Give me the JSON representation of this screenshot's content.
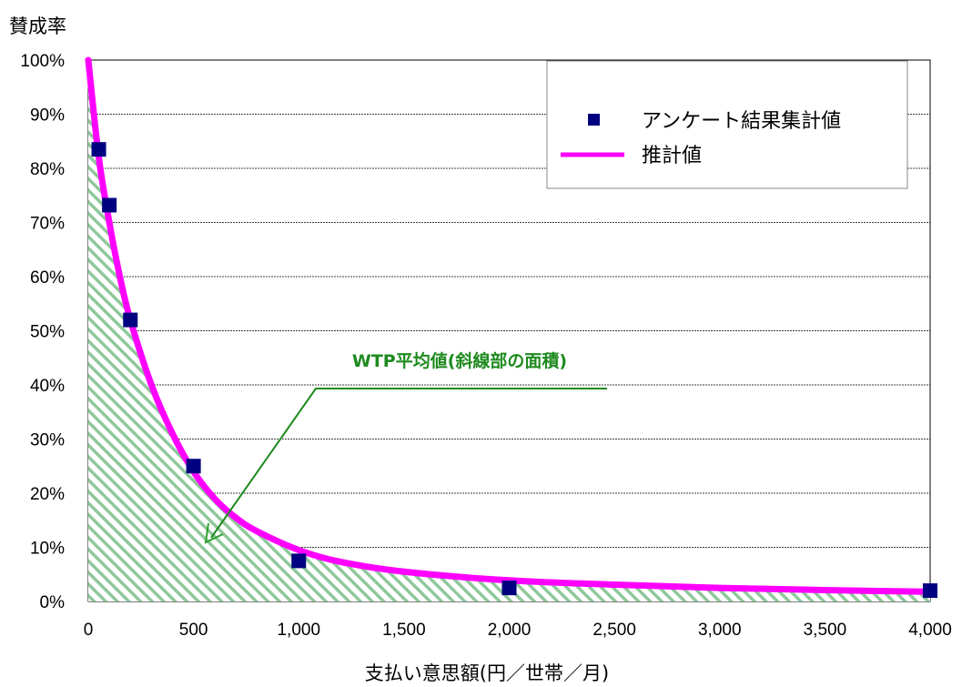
{
  "chart_data": {
    "type": "scatter",
    "ylabel": "賛成率",
    "xlabel": "支払い意思額(円／世帯／月)",
    "xlim": [
      0,
      4000
    ],
    "ylim": [
      0,
      100
    ],
    "x_ticks": [
      "0",
      "500",
      "1,000",
      "1,500",
      "2,000",
      "2,500",
      "3,000",
      "3,500",
      "4,000"
    ],
    "y_ticks": [
      "0%",
      "10%",
      "20%",
      "30%",
      "40%",
      "50%",
      "60%",
      "70%",
      "80%",
      "90%",
      "100%"
    ],
    "grid": "horizontal",
    "legend_position": "top-right",
    "series": [
      {
        "name": "アンケート結果集計値",
        "kind": "markers",
        "color": "#000080",
        "points": [
          {
            "x": 50,
            "y": 83.5
          },
          {
            "x": 100,
            "y": 73.2
          },
          {
            "x": 200,
            "y": 52.0
          },
          {
            "x": 500,
            "y": 25.0
          },
          {
            "x": 1000,
            "y": 7.5
          },
          {
            "x": 2000,
            "y": 2.5
          },
          {
            "x": 4000,
            "y": 2.0
          }
        ]
      },
      {
        "name": "推計値",
        "kind": "line",
        "color": "#ff00ff",
        "points": [
          {
            "x": 0,
            "y": 100
          },
          {
            "x": 50,
            "y": 82
          },
          {
            "x": 100,
            "y": 70
          },
          {
            "x": 150,
            "y": 60
          },
          {
            "x": 200,
            "y": 52
          },
          {
            "x": 300,
            "y": 40
          },
          {
            "x": 400,
            "y": 31
          },
          {
            "x": 500,
            "y": 24
          },
          {
            "x": 600,
            "y": 19
          },
          {
            "x": 700,
            "y": 15.5
          },
          {
            "x": 800,
            "y": 13
          },
          {
            "x": 1000,
            "y": 9.5
          },
          {
            "x": 1200,
            "y": 7.3
          },
          {
            "x": 1500,
            "y": 5.5
          },
          {
            "x": 2000,
            "y": 3.9
          },
          {
            "x": 2500,
            "y": 3.1
          },
          {
            "x": 3000,
            "y": 2.5
          },
          {
            "x": 3500,
            "y": 2.1
          },
          {
            "x": 4000,
            "y": 1.8
          }
        ]
      }
    ],
    "annotation": {
      "text": "WTP平均値(斜線部の面積)",
      "color": "#1e8a1e"
    },
    "hatch_color": "#8fc89b"
  }
}
